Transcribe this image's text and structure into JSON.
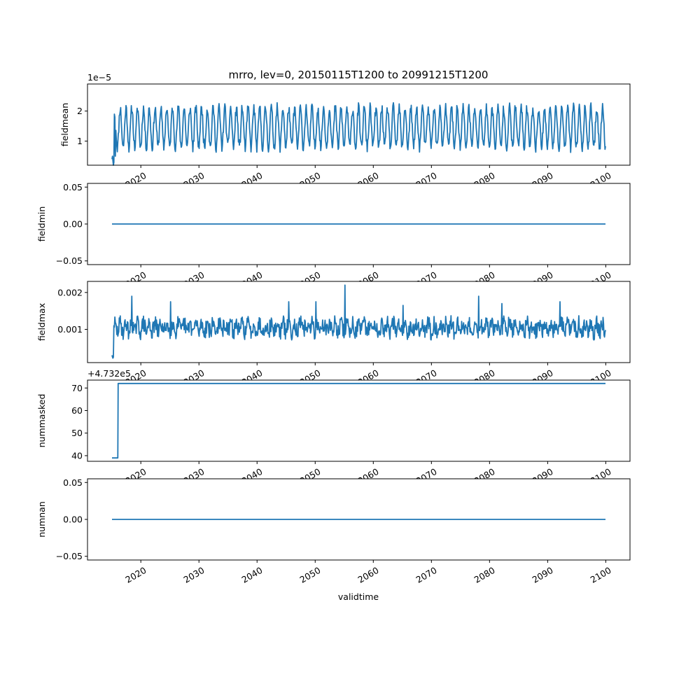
{
  "chart_data": {
    "type": "line",
    "title": "mrro, lev=0, 20150115T1200 to 20991215T1200",
    "xlabel": "validtime",
    "x_range": [
      "2015-01-15",
      "2099-12-15"
    ],
    "x_ticks": [
      "2020",
      "2030",
      "2040",
      "2050",
      "2060",
      "2070",
      "2080",
      "2090",
      "2100"
    ],
    "panels": [
      {
        "ylabel": "fieldmean",
        "offset_label": "1e−5",
        "ylim": [
          2e-06,
          2.9e-05
        ],
        "yticks": [
          1e-05,
          2e-05
        ],
        "ytick_labels": [
          "1",
          "2"
        ],
        "series_kind": "seasonal",
        "base": 1.45e-05,
        "amplitude": 6.5e-06,
        "noise": 1.8e-06,
        "seed": 11,
        "start_values": [
          4e-06,
          5e-06,
          3.5e-06,
          2e-06,
          3e-06,
          1.9e-05,
          1.8e-05,
          5e-06
        ]
      },
      {
        "ylabel": "fieldmin",
        "offset_label": "",
        "ylim": [
          -0.055,
          0.055
        ],
        "yticks": [
          -0.05,
          0.0,
          0.05
        ],
        "ytick_labels": [
          "−0.05",
          "0.00",
          "0.05"
        ],
        "series_kind": "constant",
        "value": 0.0
      },
      {
        "ylabel": "fieldmax",
        "offset_label": "",
        "ylim": [
          0.0001,
          0.0023
        ],
        "yticks": [
          0.001,
          0.002
        ],
        "ytick_labels": [
          "0.001",
          "0.002"
        ],
        "series_kind": "noisy",
        "base": 0.00105,
        "amplitude": 0.00012,
        "noise": 0.00022,
        "seed": 29,
        "start_values": [
          0.0003,
          0.00025,
          0.00022,
          0.00025,
          0.0011
        ],
        "spikes": [
          [
            "2018-06",
            0.0019
          ],
          [
            "2025-02",
            0.00175
          ],
          [
            "2045-06",
            0.00175
          ],
          [
            "2050-02",
            0.00175
          ],
          [
            "2055-02",
            0.0022
          ],
          [
            "2065-02",
            0.00165
          ],
          [
            "2078-02",
            0.0019
          ],
          [
            "2082-02",
            0.0017
          ],
          [
            "2092-02",
            0.00175
          ]
        ]
      },
      {
        "ylabel": "nummasked",
        "offset_label": "+4.732e5",
        "ylim": [
          37.5,
          73.5
        ],
        "yticks": [
          40,
          50,
          60,
          70
        ],
        "ytick_labels": [
          "40",
          "50",
          "60",
          "70"
        ],
        "series_kind": "step",
        "low": 39,
        "high": 72,
        "step_date": "2016-01-15"
      },
      {
        "ylabel": "numnan",
        "offset_label": "",
        "ylim": [
          -0.055,
          0.055
        ],
        "yticks": [
          -0.05,
          0.0,
          0.05
        ],
        "ytick_labels": [
          "−0.05",
          "0.00",
          "0.05"
        ],
        "series_kind": "constant",
        "value": 0.0
      }
    ],
    "line_color": "#1f77b4"
  }
}
